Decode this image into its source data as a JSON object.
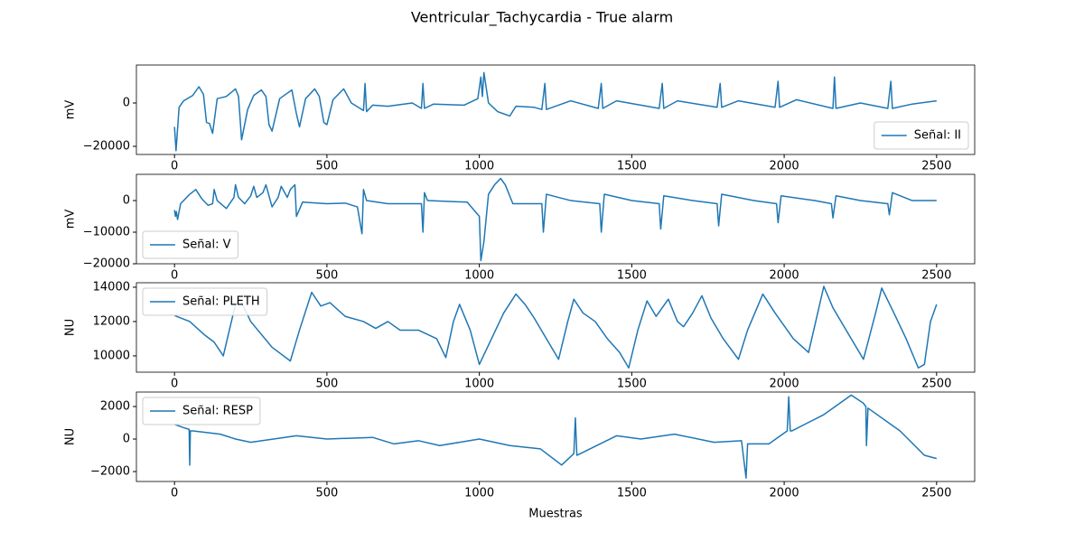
{
  "title": "Ventricular_Tachycardia - True alarm",
  "chart_data": [
    {
      "type": "line",
      "ylabel": "mV",
      "legend": "lower right",
      "xlim": [
        -125,
        2625
      ],
      "ylim": [
        -23750,
        17500
      ],
      "xticks": [
        0,
        500,
        1000,
        1500,
        2000,
        2500
      ],
      "yticks": [
        {
          "value": -20000,
          "label": "−20000"
        },
        0
      ],
      "x": [
        0,
        5,
        15,
        30,
        60,
        80,
        95,
        105,
        115,
        125,
        140,
        170,
        200,
        210,
        220,
        240,
        260,
        285,
        300,
        310,
        320,
        345,
        370,
        385,
        400,
        410,
        430,
        460,
        475,
        490,
        500,
        520,
        555,
        580,
        620,
        625,
        630,
        650,
        700,
        780,
        810,
        815,
        820,
        850,
        950,
        995,
        1005,
        1010,
        1015,
        1030,
        1060,
        1080,
        1100,
        1120,
        1180,
        1205,
        1215,
        1220,
        1300,
        1390,
        1400,
        1405,
        1450,
        1590,
        1600,
        1605,
        1650,
        1780,
        1790,
        1795,
        1850,
        1970,
        1980,
        1985,
        2040,
        2160,
        2165,
        2170,
        2250,
        2340,
        2350,
        2355,
        2420,
        2500
      ],
      "series": [
        {
          "name": "Señal: II",
          "color": "#1f77b4",
          "values": [
            -11000,
            -22000,
            -2000,
            1000,
            3500,
            7500,
            4000,
            -9000,
            -9500,
            -14000,
            2000,
            3000,
            6500,
            3000,
            -17000,
            -3000,
            3500,
            6000,
            3000,
            -10000,
            -13000,
            2000,
            4500,
            6000,
            -5000,
            -11000,
            2000,
            6500,
            3000,
            -9000,
            -10000,
            1500,
            6500,
            0,
            -3500,
            9000,
            -4000,
            -1000,
            -1500,
            0,
            -2500,
            9000,
            -2500,
            -500,
            -1000,
            2000,
            12000,
            3000,
            14000,
            0,
            -4000,
            -5000,
            -6000,
            -1500,
            -2000,
            -3000,
            9000,
            -3000,
            1000,
            -2500,
            9000,
            -2500,
            1000,
            -2500,
            9000,
            -2500,
            1000,
            -2000,
            9000,
            -2000,
            1000,
            -2000,
            10000,
            -2000,
            1500,
            -2500,
            12000,
            -2500,
            0,
            -2500,
            10000,
            -2500,
            -500,
            1000
          ]
        }
      ]
    },
    {
      "type": "line",
      "ylabel": "mV",
      "legend": "lower left",
      "xlim": [
        -125,
        2625
      ],
      "ylim": [
        -20000,
        8300
      ],
      "xticks": [
        0,
        500,
        1000,
        1500,
        2000,
        2500
      ],
      "yticks": [
        {
          "value": -20000,
          "label": "−20000"
        },
        {
          "value": -10000,
          "label": "−10000"
        },
        0
      ],
      "x": [
        0,
        3,
        6,
        10,
        20,
        50,
        70,
        90,
        110,
        125,
        130,
        140,
        170,
        195,
        200,
        210,
        230,
        250,
        260,
        270,
        290,
        300,
        320,
        340,
        350,
        370,
        380,
        395,
        400,
        420,
        500,
        560,
        600,
        615,
        620,
        630,
        700,
        810,
        815,
        820,
        830,
        960,
        1000,
        1005,
        1015,
        1030,
        1050,
        1070,
        1085,
        1110,
        1205,
        1210,
        1220,
        1300,
        1395,
        1400,
        1410,
        1500,
        1590,
        1595,
        1605,
        1700,
        1780,
        1785,
        1795,
        1900,
        1975,
        1980,
        1990,
        2100,
        2155,
        2160,
        2170,
        2250,
        2340,
        2345,
        2355,
        2420,
        2500
      ],
      "series": [
        {
          "name": "Señal: V",
          "color": "#1f77b4",
          "values": [
            -3000,
            -5000,
            -3500,
            -6000,
            -1000,
            2000,
            3500,
            500,
            -1500,
            -1000,
            3500,
            0,
            -2500,
            1000,
            5000,
            1000,
            -1000,
            1500,
            4500,
            1000,
            2500,
            5000,
            -2000,
            1000,
            4500,
            1000,
            3500,
            5000,
            -5000,
            -500,
            -1000,
            -800,
            -2000,
            -10500,
            3500,
            0,
            -1000,
            -1000,
            -10000,
            2500,
            0,
            -500,
            -5000,
            -19000,
            -13000,
            2000,
            5000,
            7000,
            5000,
            -1000,
            -1000,
            -10000,
            2000,
            0,
            -1000,
            -10000,
            2000,
            0,
            -1000,
            -9000,
            1500,
            0,
            -1000,
            -8000,
            2000,
            0,
            -1000,
            -7000,
            1500,
            0,
            -1000,
            -5500,
            1500,
            0,
            -1000,
            -4500,
            2500,
            0,
            0
          ]
        }
      ]
    },
    {
      "type": "line",
      "ylabel": "NU",
      "legend": "upper left",
      "xlim": [
        -125,
        2625
      ],
      "ylim": [
        9050,
        14260
      ],
      "xticks": [
        0,
        500,
        1000,
        1500,
        2000,
        2500
      ],
      "yticks": [
        10000,
        12000,
        14000
      ],
      "x": [
        0,
        50,
        100,
        130,
        160,
        180,
        200,
        215,
        250,
        320,
        380,
        410,
        450,
        480,
        510,
        560,
        620,
        660,
        700,
        740,
        800,
        860,
        890,
        915,
        935,
        970,
        1000,
        1040,
        1080,
        1120,
        1150,
        1180,
        1220,
        1260,
        1290,
        1310,
        1340,
        1380,
        1420,
        1460,
        1490,
        1520,
        1550,
        1580,
        1620,
        1650,
        1670,
        1700,
        1730,
        1760,
        1800,
        1850,
        1880,
        1930,
        1970,
        2030,
        2080,
        2110,
        2130,
        2160,
        2220,
        2260,
        2300,
        2320,
        2360,
        2400,
        2440,
        2460,
        2480,
        2500
      ],
      "series": [
        {
          "name": "Señal: PLETH",
          "color": "#1f77b4",
          "values": [
            12350,
            12000,
            11200,
            10800,
            10000,
            11500,
            13000,
            13300,
            12000,
            10500,
            9700,
            11500,
            13700,
            12900,
            13100,
            12300,
            12000,
            11600,
            12000,
            11500,
            11500,
            11000,
            9900,
            12000,
            13000,
            11500,
            9500,
            11000,
            12500,
            13600,
            13000,
            12200,
            11000,
            9800,
            12000,
            13300,
            12500,
            12000,
            11000,
            10200,
            9300,
            11500,
            13200,
            12300,
            13300,
            12000,
            11700,
            12500,
            13500,
            12200,
            11000,
            9800,
            11500,
            13600,
            12500,
            11000,
            10200,
            12500,
            14050,
            12800,
            11000,
            9800,
            12500,
            13950,
            12500,
            11000,
            9300,
            9500,
            12000,
            13000
          ]
        }
      ]
    },
    {
      "type": "line",
      "ylabel": "NU",
      "xlabel": "Muestras",
      "legend": "upper left",
      "xlim": [
        -125,
        2625
      ],
      "ylim": [
        -2610,
        2890
      ],
      "xticks": [
        0,
        500,
        1000,
        1500,
        2000,
        2500
      ],
      "yticks": [
        {
          "value": -2000,
          "label": "−2000"
        },
        0,
        2000
      ],
      "x": [
        0,
        30,
        48,
        50,
        52,
        60,
        150,
        200,
        250,
        400,
        500,
        650,
        720,
        800,
        870,
        1000,
        1100,
        1200,
        1270,
        1310,
        1315,
        1320,
        1450,
        1530,
        1640,
        1770,
        1860,
        1875,
        1880,
        1890,
        1950,
        2010,
        2015,
        2020,
        2025,
        2130,
        2220,
        2260,
        2268,
        2270,
        2275,
        2380,
        2460,
        2500
      ],
      "series": [
        {
          "name": "Señal: RESP",
          "color": "#1f77b4",
          "values": [
            900,
            700,
            600,
            -1600,
            500,
            500,
            300,
            0,
            -200,
            200,
            0,
            100,
            -300,
            -100,
            -400,
            0,
            -400,
            -600,
            -1600,
            -900,
            1300,
            -1000,
            200,
            0,
            300,
            -200,
            -100,
            -2400,
            -300,
            -300,
            -300,
            500,
            2600,
            500,
            500,
            1500,
            2700,
            2200,
            2000,
            -400,
            1900,
            500,
            -1000,
            -1200
          ]
        }
      ]
    }
  ]
}
